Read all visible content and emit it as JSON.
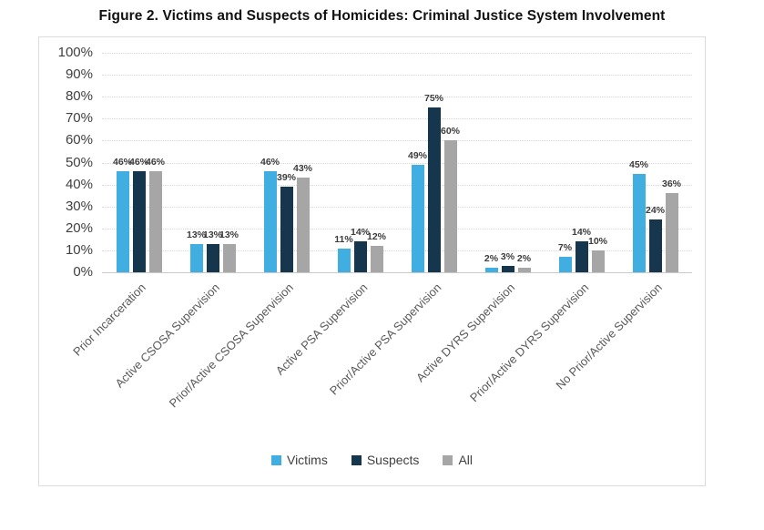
{
  "chart_data": {
    "type": "bar",
    "title": "Figure 2. Victims and Suspects of Homicides: Criminal Justice System Involvement",
    "categories": [
      "Prior Incarceration",
      "Active CSOSA Supervision",
      "Prior/Active CSOSA Supervision",
      "Active PSA Supervision",
      "Prior/Active PSA Supervision",
      "Active DYRS Supervision",
      "Prior/Active DYRS Supervision",
      "No Prior/Active Supervision"
    ],
    "series": [
      {
        "name": "Victims",
        "color": "#41aee2",
        "values": [
          46,
          13,
          46,
          11,
          49,
          2,
          7,
          45
        ]
      },
      {
        "name": "Suspects",
        "color": "#16364d",
        "values": [
          46,
          13,
          39,
          14,
          75,
          3,
          14,
          24
        ]
      },
      {
        "name": "All",
        "color": "#a6a6a6",
        "values": [
          46,
          13,
          43,
          12,
          60,
          2,
          10,
          36
        ]
      }
    ],
    "data_label_format": "percent",
    "y_axis": {
      "min": 0,
      "max": 100,
      "step": 10,
      "tick_labels": [
        "0%",
        "10%",
        "20%",
        "30%",
        "40%",
        "50%",
        "60%",
        "70%",
        "80%",
        "90%",
        "100%"
      ]
    },
    "xlabel": "",
    "ylabel": "",
    "grid": true,
    "legend_position": "bottom",
    "legend_entries": [
      "Victims",
      "Suspects",
      "All"
    ]
  }
}
